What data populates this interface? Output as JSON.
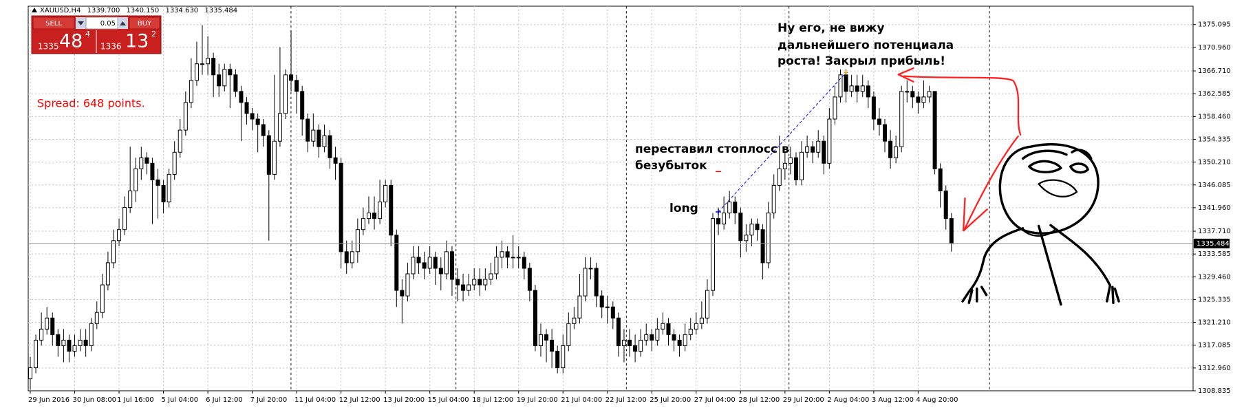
{
  "chart_data": {
    "type": "candlestick",
    "symbol_info": [
      "XAUUSD,H4",
      "1339.700",
      "1340.150",
      "1334.630",
      "1335.484"
    ],
    "trade_panel": {
      "sell_label": "SELL",
      "buy_label": "BUY",
      "lot": "0.05",
      "sell_price": [
        "1335",
        "48",
        "4"
      ],
      "buy_price": [
        "1336",
        "13",
        "2"
      ]
    },
    "spread_text": "Spread: 648 points.",
    "annotations": {
      "close_note": [
        "Ну его, не вижу",
        "дальнейшего потенциала",
        "роста! Закрыл прибыль!"
      ],
      "stop_note": [
        "переставил стоплосс в",
        "безубыток"
      ],
      "entry_note": "long"
    },
    "categories": [
      "29 Jun 2016",
      null,
      null,
      null,
      null,
      null,
      null,
      null,
      "30 Jun 08:00",
      null,
      null,
      null,
      null,
      null,
      null,
      null,
      "1 Jul 16:00",
      null,
      null,
      null,
      null,
      null,
      null,
      null,
      "5 Jul 04:00",
      null,
      null,
      null,
      null,
      null,
      null,
      null,
      "6 Jul 12:00",
      null,
      null,
      null,
      null,
      null,
      null,
      null,
      "7 Jul 20:00",
      null,
      null,
      null,
      null,
      null,
      null,
      null,
      "11 Jul 04:00",
      null,
      null,
      null,
      null,
      null,
      null,
      null,
      "12 Jul 12:00",
      null,
      null,
      null,
      null,
      null,
      null,
      null,
      "13 Jul 20:00",
      null,
      null,
      null,
      null,
      null,
      null,
      null,
      "15 Jul 04:00",
      null,
      null,
      null,
      null,
      null,
      null,
      null,
      "18 Jul 12:00",
      null,
      null,
      null,
      null,
      null,
      null,
      null,
      "19 Jul 20:00",
      null,
      null,
      null,
      null,
      null,
      null,
      null,
      "21 Jul 04:00",
      null,
      null,
      null,
      null,
      null,
      null,
      null,
      "22 Jul 12:00",
      null,
      null,
      null,
      null,
      null,
      null,
      null,
      "25 Jul 20:00",
      null,
      null,
      null,
      null,
      null,
      null,
      null,
      "27 Jul 04:00",
      null,
      null,
      null,
      null,
      null,
      null,
      null,
      "28 Jul 12:00",
      null,
      null,
      null,
      null,
      null,
      null,
      null,
      "29 Jul 20:00",
      null,
      null,
      null,
      null,
      null,
      null,
      null,
      "2 Aug 04:00",
      null,
      null,
      null,
      null,
      null,
      null,
      null,
      "3 Aug 12:00",
      null,
      null,
      null,
      null,
      null,
      null,
      null,
      "4 Aug 20:00",
      null,
      null,
      null,
      null,
      null,
      null
    ],
    "open": [
      1311,
      1313,
      1318,
      1320,
      1322,
      1319,
      1317,
      1318,
      1316,
      1317,
      1318,
      1317,
      1321,
      1323,
      1328,
      1332,
      1336,
      1338,
      1342,
      1345,
      1349,
      1351,
      1350,
      1347,
      1346,
      1343,
      1348,
      1352,
      1356,
      1361,
      1365,
      1368,
      1368,
      1369,
      1366,
      1364,
      1367,
      1366,
      1363,
      1361,
      1359,
      1358,
      1357,
      1355,
      1348,
      1354,
      1359,
      1366,
      1365,
      1363,
      1358,
      1354,
      1356,
      1353,
      1355,
      1351,
      1350,
      1334,
      1332,
      1334,
      1338,
      1340,
      1341,
      1340,
      1343,
      1346,
      1337,
      1327,
      1326,
      1330,
      1333,
      1332,
      1331,
      1333,
      1331,
      1330,
      1334,
      1329,
      1328,
      1327,
      1328,
      1329,
      1328,
      1329,
      1330,
      1333,
      1334,
      1333,
      1333,
      1333,
      1331,
      1327,
      1317,
      1319,
      1318,
      1316,
      1313,
      1317,
      1321,
      1322,
      1326,
      1331,
      1331,
      1326,
      1324,
      1324,
      1322,
      1317,
      1318,
      1317,
      1316,
      1318,
      1319,
      1318,
      1320,
      1321,
      1319,
      1318,
      1317,
      1319,
      1320,
      1321,
      1322,
      1327,
      1340,
      1339,
      1341,
      1343,
      1341,
      1336,
      1337,
      1339,
      1338,
      1332,
      1341,
      1346,
      1349,
      1350,
      1351,
      1347,
      1352,
      1353,
      1352,
      1354,
      1350,
      1358,
      1362,
      1366,
      1363,
      1364,
      1363,
      1364,
      1362,
      1358,
      1357,
      1354,
      1351,
      1353,
      1363,
      1363,
      1362,
      1361,
      1362,
      1363,
      1349,
      1345,
      1340
    ],
    "high": [
      1315,
      1319,
      1323,
      1324,
      1323,
      1320,
      1320,
      1319,
      1319,
      1320,
      1320,
      1322,
      1325,
      1330,
      1334,
      1338,
      1340,
      1344,
      1353,
      1351,
      1353,
      1352,
      1351,
      1349,
      1347,
      1349,
      1354,
      1358,
      1363,
      1369,
      1372,
      1375,
      1373,
      1370,
      1368,
      1368,
      1368,
      1367,
      1364,
      1362,
      1360,
      1359,
      1358,
      1356,
      1366,
      1371,
      1367,
      1374,
      1366,
      1364,
      1359,
      1359,
      1357,
      1357,
      1356,
      1353,
      1351,
      1336,
      1336,
      1340,
      1342,
      1344,
      1344,
      1347,
      1347,
      1347,
      1338,
      1329,
      1332,
      1335,
      1335,
      1334,
      1335,
      1334,
      1333,
      1336,
      1335,
      1331,
      1330,
      1330,
      1331,
      1331,
      1331,
      1332,
      1335,
      1336,
      1335,
      1337,
      1335,
      1334,
      1332,
      1328,
      1321,
      1320,
      1320,
      1317,
      1319,
      1323,
      1324,
      1330,
      1333,
      1333,
      1332,
      1327,
      1326,
      1325,
      1323,
      1320,
      1320,
      1319,
      1320,
      1321,
      1320,
      1322,
      1323,
      1322,
      1320,
      1319,
      1321,
      1322,
      1323,
      1325,
      1329,
      1341,
      1342,
      1344,
      1345,
      1344,
      1342,
      1339,
      1340,
      1340,
      1339,
      1343,
      1348,
      1355,
      1352,
      1353,
      1352,
      1354,
      1355,
      1354,
      1356,
      1355,
      1360,
      1364,
      1367,
      1367,
      1366,
      1366,
      1366,
      1365,
      1363,
      1360,
      1358,
      1356,
      1355,
      1364,
      1365,
      1364,
      1363,
      1365,
      1364,
      1363,
      1350,
      1346,
      1341
    ],
    "low": [
      1309,
      1312,
      1317,
      1319,
      1317,
      1315,
      1314,
      1314,
      1315,
      1316,
      1315,
      1316,
      1320,
      1322,
      1327,
      1331,
      1335,
      1337,
      1341,
      1343,
      1347,
      1348,
      1339,
      1340,
      1341,
      1342,
      1347,
      1351,
      1355,
      1360,
      1364,
      1366,
      1366,
      1362,
      1362,
      1363,
      1360,
      1362,
      1354,
      1357,
      1356,
      1352,
      1353,
      1336,
      1347,
      1353,
      1358,
      1363,
      1359,
      1355,
      1352,
      1353,
      1351,
      1352,
      1349,
      1347,
      1331,
      1330,
      1331,
      1332,
      1337,
      1339,
      1338,
      1339,
      1342,
      1335,
      1324,
      1321,
      1325,
      1329,
      1330,
      1329,
      1330,
      1328,
      1327,
      1329,
      1326,
      1325,
      1325,
      1326,
      1327,
      1326,
      1327,
      1328,
      1329,
      1331,
      1331,
      1331,
      1331,
      1329,
      1325,
      1316,
      1315,
      1314,
      1313,
      1312,
      1312,
      1316,
      1320,
      1321,
      1325,
      1329,
      1324,
      1322,
      1321,
      1320,
      1315,
      1314,
      1315,
      1314,
      1315,
      1317,
      1316,
      1317,
      1319,
      1317,
      1316,
      1315,
      1316,
      1318,
      1319,
      1320,
      1321,
      1326,
      1337,
      1338,
      1340,
      1339,
      1333,
      1334,
      1335,
      1336,
      1329,
      1331,
      1340,
      1345,
      1347,
      1348,
      1346,
      1346,
      1351,
      1350,
      1351,
      1348,
      1349,
      1357,
      1361,
      1361,
      1362,
      1361,
      1362,
      1360,
      1356,
      1355,
      1352,
      1349,
      1350,
      1352,
      1361,
      1360,
      1359,
      1360,
      1361,
      1348,
      1342,
      1338,
      1334
    ],
    "close": [
      1313,
      1318,
      1320,
      1322,
      1319,
      1317,
      1318,
      1316,
      1317,
      1318,
      1317,
      1321,
      1323,
      1328,
      1332,
      1336,
      1338,
      1342,
      1345,
      1349,
      1351,
      1350,
      1347,
      1346,
      1343,
      1348,
      1352,
      1356,
      1361,
      1365,
      1368,
      1368,
      1369,
      1366,
      1364,
      1367,
      1366,
      1363,
      1361,
      1359,
      1358,
      1357,
      1355,
      1348,
      1354,
      1359,
      1366,
      1365,
      1363,
      1358,
      1354,
      1356,
      1353,
      1355,
      1351,
      1350,
      1334,
      1332,
      1334,
      1338,
      1340,
      1341,
      1340,
      1343,
      1346,
      1337,
      1327,
      1326,
      1330,
      1333,
      1332,
      1331,
      1333,
      1331,
      1330,
      1334,
      1329,
      1328,
      1327,
      1328,
      1329,
      1328,
      1329,
      1330,
      1333,
      1334,
      1333,
      1333,
      1333,
      1331,
      1327,
      1317,
      1319,
      1318,
      1316,
      1313,
      1317,
      1321,
      1322,
      1326,
      1331,
      1331,
      1326,
      1324,
      1324,
      1322,
      1317,
      1318,
      1317,
      1316,
      1318,
      1319,
      1318,
      1320,
      1321,
      1319,
      1318,
      1317,
      1319,
      1320,
      1321,
      1322,
      1327,
      1340,
      1339,
      1341,
      1343,
      1341,
      1336,
      1337,
      1339,
      1338,
      1332,
      1341,
      1346,
      1349,
      1350,
      1351,
      1347,
      1352,
      1353,
      1352,
      1354,
      1350,
      1358,
      1362,
      1366,
      1363,
      1364,
      1363,
      1364,
      1362,
      1358,
      1357,
      1354,
      1351,
      1353,
      1363,
      1363,
      1362,
      1361,
      1362,
      1363,
      1349,
      1345,
      1340,
      1335.484
    ],
    "up_color": "#ffffff",
    "down_color": "#000000",
    "wick_color": "#000000",
    "current_price": {
      "value": 1335.484,
      "label": "1335.484"
    },
    "trade_line": {
      "x": [
        124,
        147
      ],
      "values": [
        1341.2,
        1366.4
      ],
      "color": "#0000ff"
    },
    "stop_marker": {
      "x": 124,
      "value": 1348.5,
      "color": "#ff0000"
    },
    "ylim": [
      1308.835,
      1378.42
    ],
    "yticks": [
      1375.095,
      {
        "value": 1370.96,
        "label": "1370.960"
      },
      {
        "value": 1366.71,
        "label": "1366.710"
      },
      1362.585,
      {
        "value": 1358.46,
        "label": "1358.460"
      },
      1354.335,
      {
        "value": 1350.21,
        "label": "1350.210"
      },
      1346.085,
      {
        "value": 1341.96,
        "label": "1341.960"
      },
      {
        "value": 1337.71,
        "label": "1337.710"
      },
      1333.585,
      {
        "value": 1329.46,
        "label": "1329.460"
      },
      1325.335,
      {
        "value": 1321.21,
        "label": "1321.210"
      },
      1317.085,
      {
        "value": 1312.96,
        "label": "1312.960"
      },
      1308.835
    ],
    "grid": true
  }
}
